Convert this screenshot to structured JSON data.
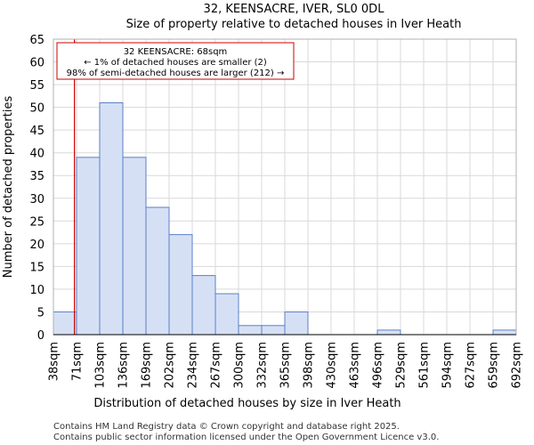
{
  "chart_data": {
    "type": "bar",
    "title": "32, KEENSACRE, IVER, SL0 0DL",
    "subtitle": "Size of property relative to detached houses in Iver Heath",
    "xlabel": "Distribution of detached houses by size in Iver Heath",
    "ylabel": "Number of detached properties",
    "ylim": [
      0,
      65
    ],
    "yticks": [
      0,
      5,
      10,
      15,
      20,
      25,
      30,
      35,
      40,
      45,
      50,
      55,
      60,
      65
    ],
    "bin_edges": [
      "38sqm",
      "71sqm",
      "103sqm",
      "136sqm",
      "169sqm",
      "202sqm",
      "234sqm",
      "267sqm",
      "300sqm",
      "332sqm",
      "365sqm",
      "398sqm",
      "430sqm",
      "463sqm",
      "496sqm",
      "529sqm",
      "561sqm",
      "594sqm",
      "627sqm",
      "659sqm",
      "692sqm"
    ],
    "values": [
      5,
      39,
      51,
      39,
      28,
      22,
      13,
      9,
      2,
      2,
      5,
      0,
      0,
      0,
      1,
      0,
      0,
      0,
      0,
      1
    ],
    "bar_color": "#d6e0f5",
    "bar_edge_color": "#5b7fc7",
    "grid": true,
    "marker": {
      "value_sqm": 68,
      "color": "#cc0000",
      "lines": [
        "32 KEENSACRE: 68sqm",
        "← 1% of detached houses are smaller (2)",
        "98% of semi-detached houses are larger (212) →"
      ]
    }
  },
  "footer": {
    "line1": "Contains HM Land Registry data © Crown copyright and database right 2025.",
    "line2": "Contains public sector information licensed under the Open Government Licence v3.0."
  }
}
